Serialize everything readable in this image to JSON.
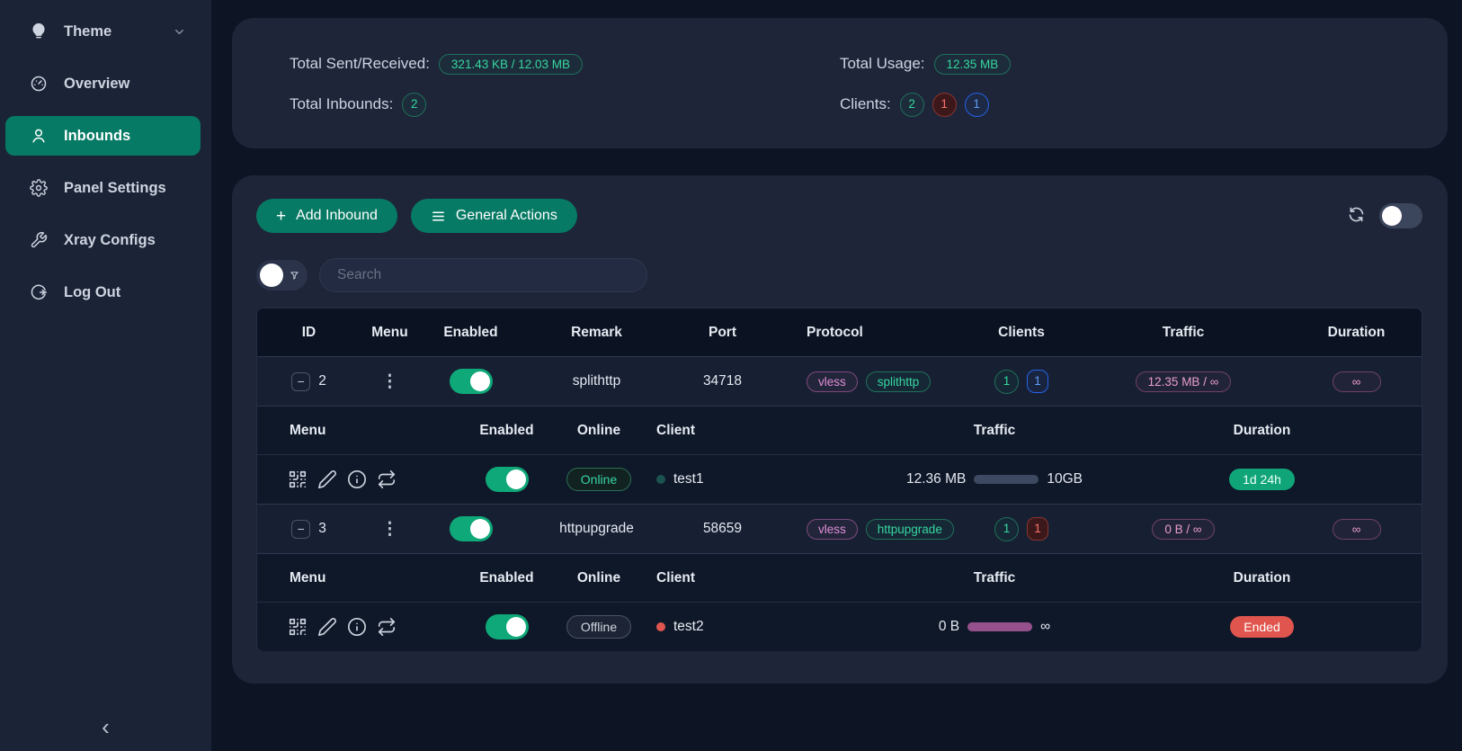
{
  "colors": {
    "accent": "#067a64",
    "toggle-on": "#0fa878",
    "green": "#36d6a0",
    "red": "#e0564e",
    "blue": "#3b82f6",
    "pink": "#df8fd6",
    "bar-track": "#3d4961",
    "bar-purple": "#96518d"
  },
  "sidebar": {
    "items": [
      {
        "label": "Theme",
        "icon": "bulb-icon"
      },
      {
        "label": "Overview",
        "icon": "gauge-icon"
      },
      {
        "label": "Inbounds",
        "icon": "user-icon"
      },
      {
        "label": "Panel Settings",
        "icon": "gear-icon"
      },
      {
        "label": "Xray Configs",
        "icon": "wrench-icon"
      },
      {
        "label": "Log Out",
        "icon": "logout-icon"
      }
    ],
    "collapse_icon": "‹"
  },
  "stats": {
    "sent_received_label": "Total Sent/Received:",
    "sent_received_value": "321.43 KB / 12.03 MB",
    "usage_label": "Total Usage:",
    "usage_value": "12.35 MB",
    "inbounds_label": "Total Inbounds:",
    "inbounds_value": "2",
    "clients_label": "Clients:",
    "clients_badges": [
      {
        "value": "2",
        "type": "green"
      },
      {
        "value": "1",
        "type": "red"
      },
      {
        "value": "1",
        "type": "blue"
      }
    ]
  },
  "toolbar": {
    "plus_icon": "+",
    "add_inbound_label": "Add Inbound",
    "general_actions_label": "General Actions"
  },
  "search": {
    "placeholder": "Search"
  },
  "table": {
    "headers": [
      "ID",
      "Menu",
      "Enabled",
      "Remark",
      "Port",
      "Protocol",
      "Clients",
      "Traffic",
      "Duration"
    ],
    "client_headers": [
      "Menu",
      "Enabled",
      "Online",
      "Client",
      "Traffic",
      "Duration"
    ],
    "icons": {
      "collapse_row": "−",
      "menu_dots": "⋮"
    },
    "inbounds": [
      {
        "id": "2",
        "enabled": true,
        "remark": "splithttp",
        "port": "34718",
        "tags": [
          {
            "text": "vless",
            "type": "pink"
          },
          {
            "text": "splithttp",
            "type": "green"
          }
        ],
        "badges": [
          {
            "value": "1",
            "type": "green"
          },
          {
            "value": "1",
            "type": "blue"
          }
        ],
        "traffic": "12.35 MB / ∞",
        "duration": "∞",
        "clients": [
          {
            "status": "Online",
            "dot": "teal",
            "name": "test1",
            "used": "12.36 MB",
            "total": "10GB",
            "bar": {
              "track": "#3d4961",
              "fill": "#3d4961",
              "percent": 100
            },
            "duration": "1d 24h",
            "duration_type": "active"
          }
        ]
      },
      {
        "id": "3",
        "enabled": true,
        "remark": "httpupgrade",
        "port": "58659",
        "tags": [
          {
            "text": "vless",
            "type": "pink"
          },
          {
            "text": "httpupgrade",
            "type": "green"
          }
        ],
        "badges": [
          {
            "value": "1",
            "type": "green"
          },
          {
            "value": "1",
            "type": "red"
          }
        ],
        "traffic": "0 B / ∞",
        "duration": "∞",
        "clients": [
          {
            "status": "Offline",
            "dot": "red",
            "name": "test2",
            "used": "0 B",
            "total": "∞",
            "bar": {
              "track": "#96518d",
              "fill": "#96518d",
              "percent": 100
            },
            "duration": "Ended",
            "duration_type": "ended"
          }
        ]
      }
    ]
  }
}
